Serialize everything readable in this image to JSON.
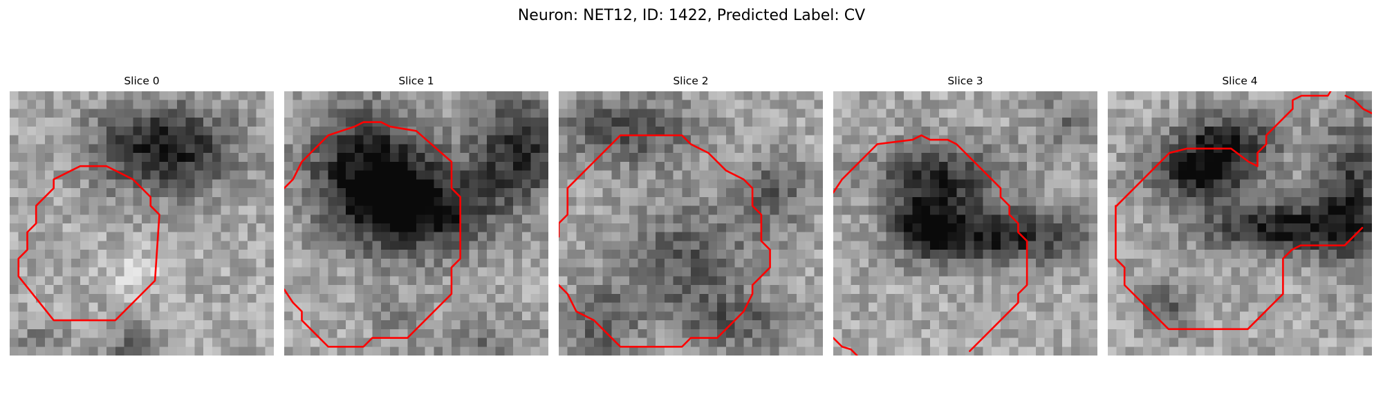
{
  "figure": {
    "title": "Neuron: NET12, ID: 1422, Predicted Label: CV"
  },
  "colors": {
    "contour": "#ff0000"
  },
  "slices": [
    {
      "title": "Slice 0",
      "shows": "grayscale tile with red contour"
    },
    {
      "title": "Slice 1",
      "shows": "grayscale tile with red contour"
    },
    {
      "title": "Slice 2",
      "shows": "grayscale tile with red contour"
    },
    {
      "title": "Slice 3",
      "shows": "grayscale tile with red contour"
    },
    {
      "title": "Slice 4",
      "shows": "grayscale tile with red contour"
    }
  ]
}
